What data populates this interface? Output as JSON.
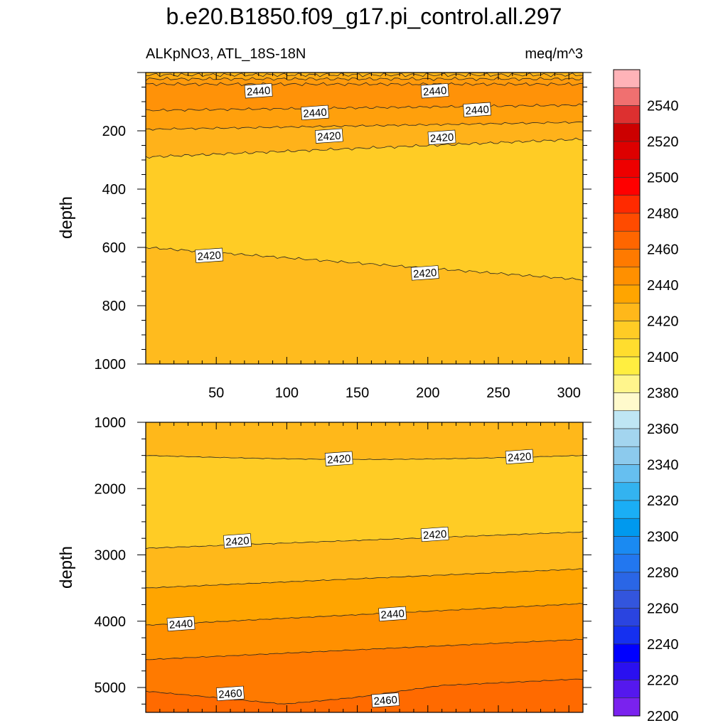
{
  "chart_data": {
    "type": "contour",
    "title": "b.e20.B1850.f09_g17.pi_control.all.297",
    "variable_label": "ALKpNO3, ATL_18S-18N",
    "units": "meq/m^3",
    "xlim": [
      0,
      310
    ],
    "xticks": [
      "50",
      "100",
      "150",
      "200",
      "250",
      "300"
    ],
    "panels": [
      {
        "name": "upper",
        "ylabel": "depth",
        "ylim": [
          0,
          1000
        ],
        "yticks": [
          "200",
          "400",
          "600",
          "800",
          "1000"
        ],
        "contour_labels": [
          {
            "value": "2440",
            "x": 80,
            "depth": 65
          },
          {
            "value": "2440",
            "x": 205,
            "depth": 65
          },
          {
            "value": "2440",
            "x": 120,
            "depth": 140
          },
          {
            "value": "2440",
            "x": 235,
            "depth": 130
          },
          {
            "value": "2420",
            "x": 130,
            "depth": 220
          },
          {
            "value": "2420",
            "x": 210,
            "depth": 225
          },
          {
            "value": "2420",
            "x": 45,
            "depth": 630
          },
          {
            "value": "2420",
            "x": 198,
            "depth": 690
          }
        ]
      },
      {
        "name": "lower",
        "ylabel": "depth",
        "ylim": [
          1000,
          5375
        ],
        "yticks": [
          "1000",
          "2000",
          "3000",
          "4000",
          "5000"
        ],
        "contour_labels": [
          {
            "value": "2420",
            "x": 137,
            "depth": 1560
          },
          {
            "value": "2420",
            "x": 265,
            "depth": 1530
          },
          {
            "value": "2420",
            "x": 65,
            "depth": 2800
          },
          {
            "value": "2420",
            "x": 205,
            "depth": 2700
          },
          {
            "value": "2440",
            "x": 25,
            "depth": 4050
          },
          {
            "value": "2440",
            "x": 175,
            "depth": 3900
          },
          {
            "value": "2460",
            "x": 60,
            "depth": 5100
          },
          {
            "value": "2460",
            "x": 170,
            "depth": 5200
          }
        ]
      }
    ],
    "colorbar": {
      "tick_labels": [
        "2540",
        "2520",
        "2500",
        "2480",
        "2460",
        "2440",
        "2420",
        "2400",
        "2380",
        "2360",
        "2340",
        "2320",
        "2300",
        "2280",
        "2260",
        "2240",
        "2220",
        "2200"
      ],
      "colors": [
        "#FFB3B8",
        "#F07070",
        "#DD3030",
        "#CC0000",
        "#DD0000",
        "#EE0000",
        "#FF0000",
        "#FF2A00",
        "#FF4B00",
        "#FF6600",
        "#FF7A00",
        "#FF9000",
        "#FFA500",
        "#FFB81A",
        "#FFCC25",
        "#FFDD2E",
        "#FFEE40",
        "#FFF58C",
        "#FFFACC",
        "#BFE6F4",
        "#A3D5EF",
        "#8CCAED",
        "#66BFF0",
        "#33B3F0",
        "#1AAEF5",
        "#0099EE",
        "#1A8AF2",
        "#2277F0",
        "#2A66E6",
        "#3355DD",
        "#2A44E0",
        "#1530F0",
        "#0000FF",
        "#2A10F0",
        "#5518EE",
        "#7A22EE"
      ]
    }
  }
}
